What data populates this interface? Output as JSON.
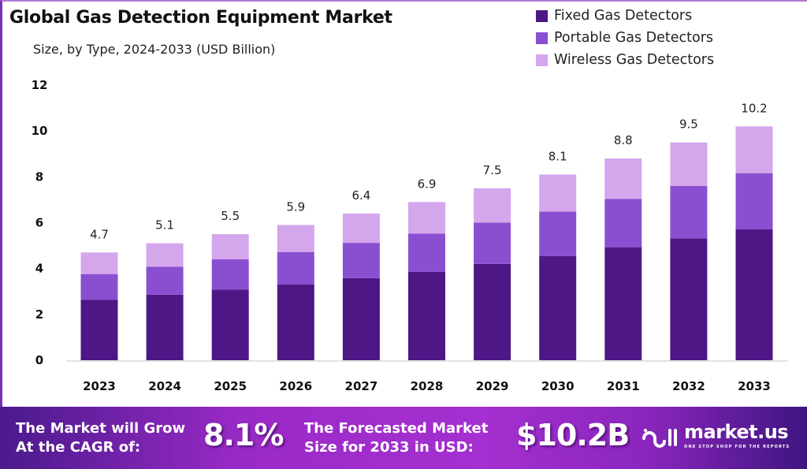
{
  "header": {
    "title": "Global Gas Detection Equipment Market",
    "subtitle": "Size, by Type, 2024-2033 (USD Billion)"
  },
  "legend": [
    {
      "label": "Fixed Gas Detectors",
      "color": "#4d1785"
    },
    {
      "label": "Portable Gas Detectors",
      "color": "#8a4fd0"
    },
    {
      "label": "Wireless Gas Detectors",
      "color": "#d4a6ec"
    }
  ],
  "chart_data": {
    "type": "bar",
    "stacked": true,
    "title": "Global Gas Detection Equipment Market",
    "subtitle": "Size, by Type, 2024-2033 (USD Billion)",
    "xlabel": "",
    "ylabel": "",
    "ylim": [
      0,
      12
    ],
    "yticks": [
      "0",
      "2",
      "4",
      "6",
      "8",
      "10",
      "12"
    ],
    "grid": false,
    "legend_position": "top-right",
    "categories": [
      "2023",
      "2024",
      "2025",
      "2026",
      "2027",
      "2028",
      "2029",
      "2030",
      "2031",
      "2032",
      "2033"
    ],
    "series": [
      {
        "name": "Fixed Gas Detectors",
        "color": "#4d1785",
        "values": [
          2.63,
          2.86,
          3.08,
          3.3,
          3.58,
          3.86,
          4.2,
          4.54,
          4.93,
          5.32,
          5.71
        ]
      },
      {
        "name": "Portable Gas Detectors",
        "color": "#8a4fd0",
        "values": [
          1.13,
          1.22,
          1.32,
          1.42,
          1.54,
          1.66,
          1.8,
          1.94,
          2.11,
          2.28,
          2.45
        ]
      },
      {
        "name": "Wireless Gas Detectors",
        "color": "#d4a6ec",
        "values": [
          0.94,
          1.02,
          1.1,
          1.18,
          1.28,
          1.38,
          1.5,
          1.62,
          1.76,
          1.9,
          2.04
        ]
      }
    ],
    "totals": [
      4.7,
      5.1,
      5.5,
      5.9,
      6.4,
      6.9,
      7.5,
      8.1,
      8.8,
      9.5,
      10.2
    ],
    "total_labels": [
      "4.7",
      "5.1",
      "5.5",
      "5.9",
      "6.4",
      "6.9",
      "7.5",
      "8.1",
      "8.8",
      "9.5",
      "10.2"
    ]
  },
  "footer": {
    "cagr_text_line1": "The Market will Grow",
    "cagr_text_line2": "At the CAGR of:",
    "cagr_value": "8.1%",
    "forecast_text_line1": "The Forecasted Market",
    "forecast_text_line2": "Size for 2033 in USD:",
    "forecast_value": "$10.2B",
    "brand_name": "market.us",
    "brand_tagline": "ONE STOP SHOP FOR THE REPORTS"
  }
}
